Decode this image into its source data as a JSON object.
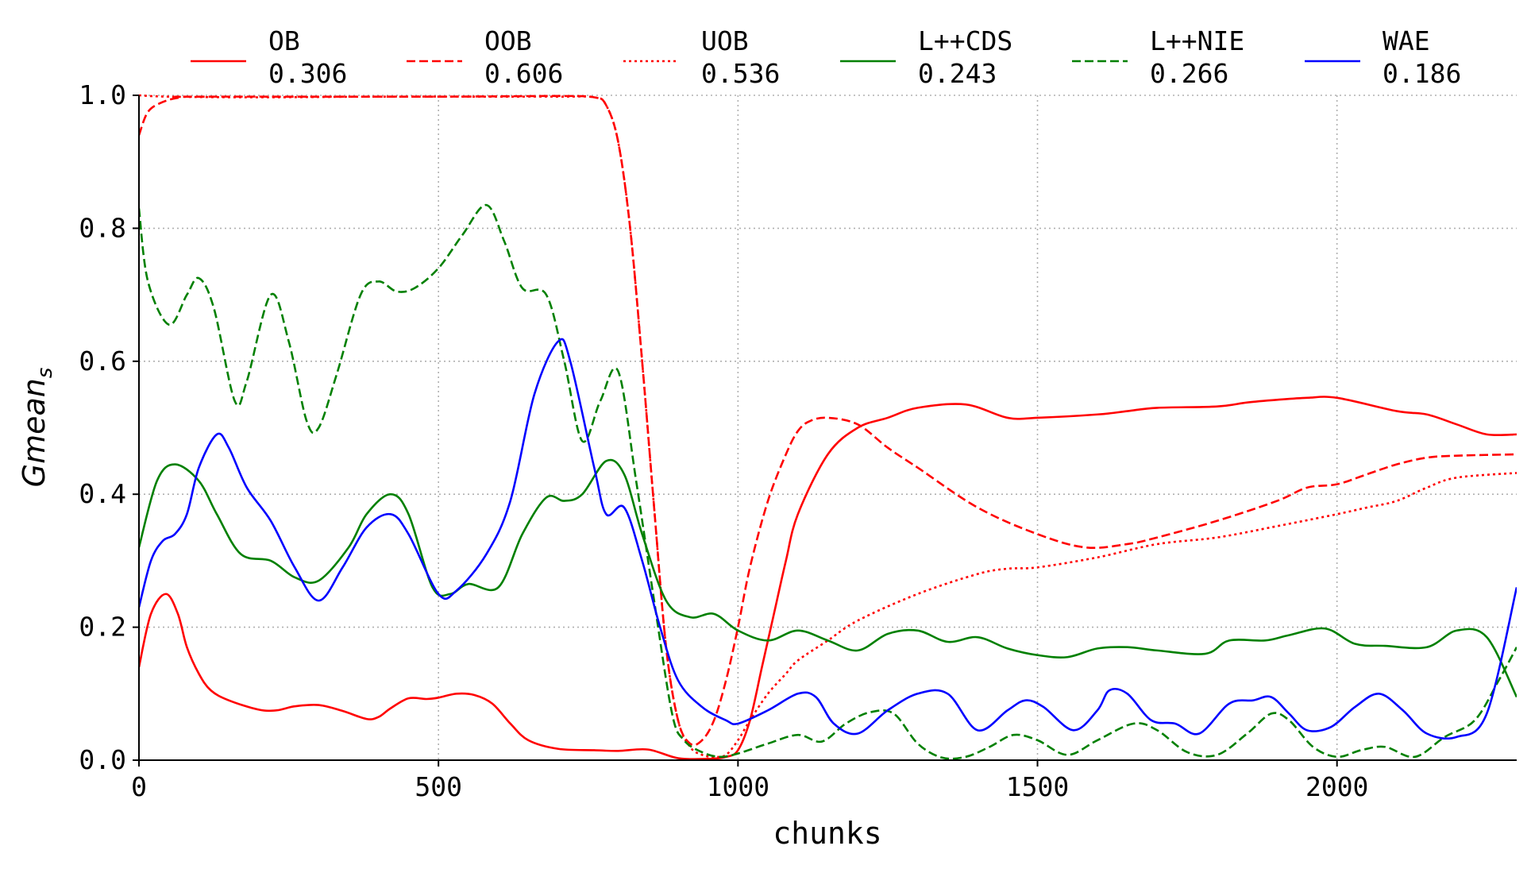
{
  "chart_data": {
    "type": "line",
    "title": "",
    "xlabel": "chunks",
    "ylabel_main": "Gmean",
    "ylabel_sub": "s",
    "xlim": [
      0,
      2300
    ],
    "ylim": [
      0,
      1.0
    ],
    "xticks": [
      0,
      500,
      1000,
      1500,
      2000
    ],
    "xtick_labels": [
      "0",
      "500",
      "1000",
      "1500",
      "2000"
    ],
    "yticks": [
      0.0,
      0.2,
      0.4,
      0.6,
      0.8,
      1.0
    ],
    "ytick_labels": [
      "0.0",
      "0.2",
      "0.4",
      "0.6",
      "0.8",
      "1.0"
    ],
    "grid": true,
    "legend_position": "top",
    "series": [
      {
        "name": "OB",
        "score": "0.306",
        "color": "#ff0000",
        "dash": "solid",
        "x": [
          0,
          20,
          45,
          65,
          80,
          100,
          120,
          150,
          200,
          230,
          260,
          300,
          340,
          380,
          400,
          420,
          450,
          480,
          500,
          530,
          560,
          590,
          620,
          650,
          700,
          760,
          800,
          850,
          900,
          950,
          980,
          1000,
          1020,
          1040,
          1060,
          1080,
          1100,
          1150,
          1200,
          1250,
          1300,
          1380,
          1450,
          1500,
          1600,
          1650,
          1700,
          1800,
          1850,
          1900,
          1950,
          2000,
          2100,
          2150,
          2200,
          2250,
          2300
        ],
        "values": [
          0.14,
          0.22,
          0.25,
          0.22,
          0.17,
          0.13,
          0.105,
          0.09,
          0.076,
          0.075,
          0.081,
          0.083,
          0.074,
          0.062,
          0.065,
          0.078,
          0.093,
          0.092,
          0.094,
          0.1,
          0.098,
          0.085,
          0.055,
          0.03,
          0.017,
          0.015,
          0.014,
          0.016,
          0.003,
          0.002,
          0.005,
          0.015,
          0.06,
          0.14,
          0.22,
          0.3,
          0.37,
          0.46,
          0.5,
          0.515,
          0.53,
          0.535,
          0.515,
          0.515,
          0.52,
          0.525,
          0.53,
          0.532,
          0.538,
          0.542,
          0.545,
          0.545,
          0.525,
          0.52,
          0.505,
          0.49,
          0.49
        ]
      },
      {
        "name": "OOB",
        "score": "0.606",
        "color": "#ff0000",
        "dash": "dashed",
        "x": [
          0,
          15,
          40,
          70,
          100,
          500,
          700,
          760,
          780,
          800,
          820,
          840,
          860,
          880,
          900,
          920,
          940,
          960,
          980,
          1000,
          1020,
          1050,
          1080,
          1100,
          1120,
          1150,
          1200,
          1250,
          1300,
          1400,
          1500,
          1580,
          1650,
          1700,
          1800,
          1900,
          1950,
          2000,
          2050,
          2100,
          2150,
          2200,
          2300
        ],
        "values": [
          0.94,
          0.975,
          0.99,
          0.997,
          0.998,
          0.998,
          0.999,
          0.997,
          0.985,
          0.93,
          0.8,
          0.6,
          0.38,
          0.17,
          0.06,
          0.025,
          0.03,
          0.06,
          0.12,
          0.2,
          0.29,
          0.39,
          0.46,
          0.495,
          0.51,
          0.515,
          0.505,
          0.47,
          0.44,
          0.38,
          0.34,
          0.32,
          0.325,
          0.335,
          0.36,
          0.39,
          0.41,
          0.415,
          0.43,
          0.445,
          0.455,
          0.458,
          0.46
        ]
      },
      {
        "name": "UOB",
        "score": "0.536",
        "color": "#ff0000",
        "dash": "dotted",
        "x": [
          0,
          50,
          200,
          400,
          600,
          700,
          760,
          780,
          800,
          820,
          840,
          860,
          880,
          900,
          920,
          940,
          960,
          980,
          1000,
          1020,
          1050,
          1080,
          1100,
          1150,
          1200,
          1300,
          1400,
          1450,
          1500,
          1600,
          1700,
          1800,
          1900,
          2000,
          2050,
          2100,
          2150,
          2200,
          2300
        ],
        "values": [
          1.0,
          0.998,
          0.997,
          0.998,
          0.998,
          0.998,
          0.997,
          0.985,
          0.93,
          0.8,
          0.6,
          0.38,
          0.17,
          0.06,
          0.02,
          0.008,
          0.005,
          0.008,
          0.03,
          0.06,
          0.1,
          0.13,
          0.15,
          0.18,
          0.21,
          0.25,
          0.28,
          0.288,
          0.29,
          0.305,
          0.325,
          0.335,
          0.352,
          0.37,
          0.38,
          0.39,
          0.41,
          0.425,
          0.432
        ]
      },
      {
        "name": "L++CDS",
        "score": "0.243",
        "color": "#008000",
        "dash": "solid",
        "x": [
          0,
          30,
          60,
          100,
          130,
          170,
          220,
          260,
          300,
          350,
          380,
          420,
          450,
          490,
          520,
          550,
          600,
          640,
          680,
          710,
          740,
          780,
          810,
          840,
          880,
          920,
          960,
          1000,
          1050,
          1100,
          1150,
          1200,
          1250,
          1300,
          1350,
          1400,
          1450,
          1500,
          1550,
          1600,
          1650,
          1700,
          1780,
          1820,
          1880,
          1920,
          1980,
          2030,
          2080,
          2150,
          2200,
          2250,
          2300
        ],
        "values": [
          0.32,
          0.42,
          0.445,
          0.42,
          0.37,
          0.31,
          0.3,
          0.275,
          0.27,
          0.32,
          0.37,
          0.4,
          0.37,
          0.26,
          0.25,
          0.265,
          0.26,
          0.34,
          0.395,
          0.39,
          0.4,
          0.45,
          0.43,
          0.34,
          0.24,
          0.215,
          0.22,
          0.195,
          0.18,
          0.195,
          0.18,
          0.165,
          0.19,
          0.195,
          0.178,
          0.185,
          0.168,
          0.158,
          0.155,
          0.168,
          0.17,
          0.165,
          0.16,
          0.18,
          0.18,
          0.188,
          0.198,
          0.175,
          0.172,
          0.17,
          0.195,
          0.185,
          0.095
        ]
      },
      {
        "name": "L++NIE",
        "score": "0.266",
        "color": "#008000",
        "dash": "dashed",
        "x": [
          0,
          15,
          50,
          80,
          100,
          125,
          160,
          180,
          220,
          250,
          280,
          300,
          330,
          370,
          400,
          430,
          460,
          500,
          540,
          580,
          610,
          640,
          680,
          710,
          740,
          770,
          800,
          830,
          860,
          890,
          910,
          940,
          970,
          1000,
          1050,
          1100,
          1140,
          1180,
          1220,
          1260,
          1300,
          1340,
          1380,
          1420,
          1460,
          1500,
          1550,
          1600,
          1660,
          1700,
          1750,
          1800,
          1850,
          1890,
          1920,
          1960,
          2000,
          2040,
          2080,
          2130,
          2180,
          2230,
          2270,
          2300
        ],
        "values": [
          0.83,
          0.72,
          0.655,
          0.7,
          0.725,
          0.68,
          0.54,
          0.57,
          0.7,
          0.63,
          0.51,
          0.5,
          0.58,
          0.7,
          0.72,
          0.705,
          0.71,
          0.74,
          0.79,
          0.835,
          0.78,
          0.71,
          0.7,
          0.6,
          0.48,
          0.54,
          0.585,
          0.42,
          0.24,
          0.07,
          0.03,
          0.012,
          0.005,
          0.01,
          0.025,
          0.038,
          0.028,
          0.055,
          0.072,
          0.07,
          0.025,
          0.004,
          0.005,
          0.02,
          0.038,
          0.03,
          0.008,
          0.03,
          0.055,
          0.045,
          0.012,
          0.008,
          0.04,
          0.07,
          0.06,
          0.02,
          0.005,
          0.015,
          0.02,
          0.005,
          0.035,
          0.06,
          0.12,
          0.17
        ]
      },
      {
        "name": "WAE",
        "score": "0.186",
        "color": "#0000ff",
        "dash": "solid",
        "x": [
          0,
          20,
          40,
          60,
          80,
          100,
          130,
          150,
          180,
          220,
          260,
          300,
          340,
          380,
          420,
          450,
          500,
          530,
          580,
          620,
          660,
          700,
          720,
          760,
          780,
          810,
          840,
          870,
          900,
          940,
          980,
          1000,
          1050,
          1100,
          1130,
          1160,
          1200,
          1250,
          1300,
          1350,
          1400,
          1450,
          1480,
          1510,
          1560,
          1600,
          1620,
          1650,
          1690,
          1730,
          1770,
          1820,
          1860,
          1890,
          1920,
          1950,
          1990,
          2030,
          2070,
          2110,
          2150,
          2200,
          2250,
          2300
        ],
        "values": [
          0.23,
          0.3,
          0.33,
          0.34,
          0.37,
          0.44,
          0.49,
          0.47,
          0.41,
          0.36,
          0.29,
          0.24,
          0.29,
          0.35,
          0.37,
          0.34,
          0.25,
          0.255,
          0.31,
          0.39,
          0.55,
          0.63,
          0.6,
          0.44,
          0.37,
          0.38,
          0.3,
          0.2,
          0.12,
          0.08,
          0.06,
          0.055,
          0.075,
          0.1,
          0.095,
          0.055,
          0.04,
          0.075,
          0.1,
          0.1,
          0.045,
          0.075,
          0.09,
          0.08,
          0.045,
          0.075,
          0.105,
          0.1,
          0.06,
          0.055,
          0.04,
          0.085,
          0.09,
          0.095,
          0.07,
          0.045,
          0.05,
          0.08,
          0.1,
          0.075,
          0.04,
          0.035,
          0.07,
          0.26
        ]
      }
    ]
  }
}
